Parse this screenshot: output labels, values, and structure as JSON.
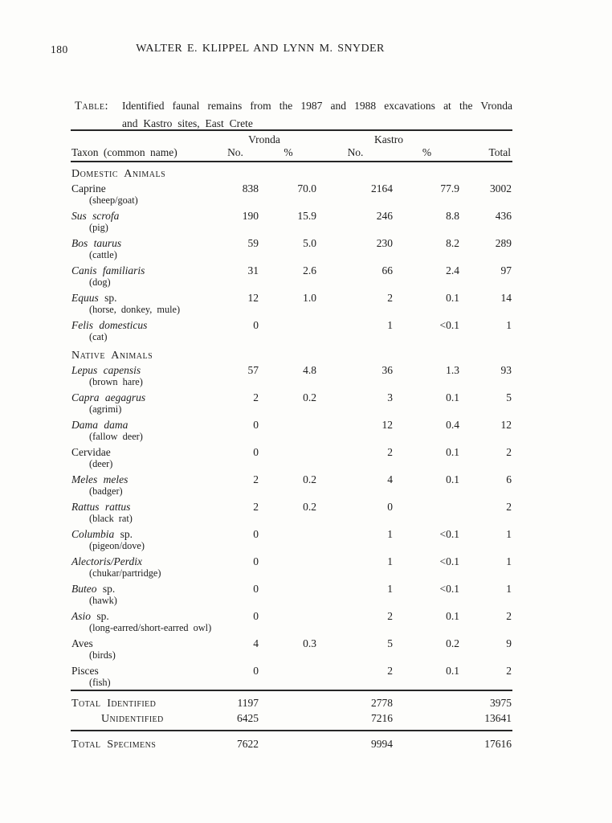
{
  "page": {
    "number": "180",
    "running_head": "WALTER E. KLIPPEL AND LYNN M. SNYDER"
  },
  "caption": {
    "label": "Table:",
    "line1": "Identified faunal remains from the 1987 and 1988 excavations at the Vronda",
    "line2": "and Kastro sites, East Crete"
  },
  "table": {
    "group_headers": {
      "vronda": "Vronda",
      "kastro": "Kastro"
    },
    "columns": {
      "taxon": "Taxon (common name)",
      "no": "No.",
      "pct": "%",
      "total": "Total"
    },
    "rows": [
      {
        "type": "section",
        "label": "Domestic Animals"
      },
      {
        "type": "taxon",
        "name": "Caprine",
        "italic": false,
        "common": "(sheep/goat)",
        "v_no": "838",
        "v_pct": "70.0",
        "k_no": "2164",
        "k_pct": "77.9",
        "total": "3002"
      },
      {
        "type": "taxon",
        "name": "Sus scrofa",
        "italic": true,
        "common": "(pig)",
        "v_no": "190",
        "v_pct": "15.9",
        "k_no": "246",
        "k_pct": "8.8",
        "total": "436"
      },
      {
        "type": "taxon",
        "name": "Bos taurus",
        "italic": true,
        "common": "(cattle)",
        "v_no": "59",
        "v_pct": "5.0",
        "k_no": "230",
        "k_pct": "8.2",
        "total": "289"
      },
      {
        "type": "taxon",
        "name": "Canis familiaris",
        "italic": true,
        "common": "(dog)",
        "v_no": "31",
        "v_pct": "2.6",
        "k_no": "66",
        "k_pct": "2.4",
        "total": "97"
      },
      {
        "type": "taxon",
        "name": "Equus",
        "italic": true,
        "suffix": "sp.",
        "common": "(horse, donkey, mule)",
        "v_no": "12",
        "v_pct": "1.0",
        "k_no": "2",
        "k_pct": "0.1",
        "total": "14"
      },
      {
        "type": "taxon",
        "name": "Felis domesticus",
        "italic": true,
        "common": "(cat)",
        "v_no": "0",
        "v_pct": "",
        "k_no": "1",
        "k_pct": "<0.1",
        "total": "1"
      },
      {
        "type": "section",
        "label": "Native Animals"
      },
      {
        "type": "taxon",
        "name": "Lepus capensis",
        "italic": true,
        "common": "(brown hare)",
        "v_no": "57",
        "v_pct": "4.8",
        "k_no": "36",
        "k_pct": "1.3",
        "total": "93"
      },
      {
        "type": "taxon",
        "name": "Capra aegagrus",
        "italic": true,
        "common": "(agrimi)",
        "v_no": "2",
        "v_pct": "0.2",
        "k_no": "3",
        "k_pct": "0.1",
        "total": "5"
      },
      {
        "type": "taxon",
        "name": "Dama dama",
        "italic": true,
        "common": "(fallow deer)",
        "v_no": "0",
        "v_pct": "",
        "k_no": "12",
        "k_pct": "0.4",
        "total": "12"
      },
      {
        "type": "taxon",
        "name": "Cervidae",
        "italic": false,
        "common": "(deer)",
        "v_no": "0",
        "v_pct": "",
        "k_no": "2",
        "k_pct": "0.1",
        "total": "2"
      },
      {
        "type": "taxon",
        "name": "Meles meles",
        "italic": true,
        "common": "(badger)",
        "v_no": "2",
        "v_pct": "0.2",
        "k_no": "4",
        "k_pct": "0.1",
        "total": "6"
      },
      {
        "type": "taxon",
        "name": "Rattus rattus",
        "italic": true,
        "common": "(black rat)",
        "v_no": "2",
        "v_pct": "0.2",
        "k_no": "0",
        "k_pct": "",
        "total": "2"
      },
      {
        "type": "taxon",
        "name": "Columbia",
        "italic": true,
        "suffix": "sp.",
        "common": "(pigeon/dove)",
        "v_no": "0",
        "v_pct": "",
        "k_no": "1",
        "k_pct": "<0.1",
        "total": "1"
      },
      {
        "type": "taxon",
        "name": "Alectoris/Perdix",
        "italic": true,
        "common": "(chukar/partridge)",
        "v_no": "0",
        "v_pct": "",
        "k_no": "1",
        "k_pct": "<0.1",
        "total": "1"
      },
      {
        "type": "taxon",
        "name": "Buteo",
        "italic": true,
        "suffix": "sp.",
        "common": "(hawk)",
        "v_no": "0",
        "v_pct": "",
        "k_no": "1",
        "k_pct": "<0.1",
        "total": "1"
      },
      {
        "type": "taxon",
        "name": "Asio",
        "italic": true,
        "suffix": "sp.",
        "common": "(long-earred/short-earred owl)",
        "v_no": "0",
        "v_pct": "",
        "k_no": "2",
        "k_pct": "0.1",
        "total": "2"
      },
      {
        "type": "taxon",
        "name": "Aves",
        "italic": false,
        "common": "(birds)",
        "v_no": "4",
        "v_pct": "0.3",
        "k_no": "5",
        "k_pct": "0.2",
        "total": "9"
      },
      {
        "type": "taxon",
        "name": "Pisces",
        "italic": false,
        "common": "(fish)",
        "v_no": "0",
        "v_pct": "",
        "k_no": "2",
        "k_pct": "0.1",
        "total": "2"
      }
    ],
    "totals": [
      {
        "label": "Total Identified",
        "indent": false,
        "v_no": "1197",
        "k_no": "2778",
        "total": "3975"
      },
      {
        "label": "Unidentified",
        "indent": true,
        "v_no": "6425",
        "k_no": "7216",
        "total": "13641"
      },
      {
        "label": "Total Specimens",
        "indent": false,
        "final": true,
        "v_no": "7622",
        "k_no": "9994",
        "total": "17616"
      }
    ]
  }
}
